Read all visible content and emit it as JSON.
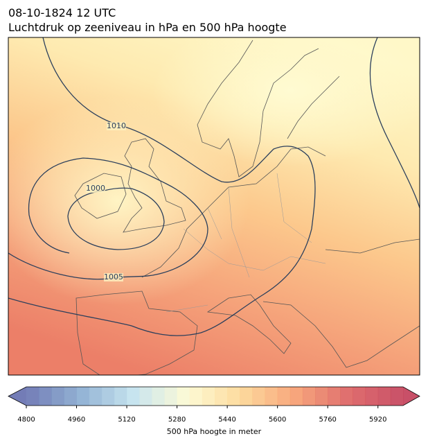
{
  "title": "08-10-1824 12 UTC",
  "subtitle": "Luchtdruk op zeeniveau in hPa en 500 hPa hoogte",
  "isobar_labels": [
    1010,
    1000,
    1005
  ],
  "colorbar": {
    "label": "500 hPa hoogte in meter",
    "lim": [
      4800,
      6000
    ],
    "ticks": [
      4800,
      4960,
      5120,
      5280,
      5440,
      5600,
      5760,
      5920
    ]
  }
}
